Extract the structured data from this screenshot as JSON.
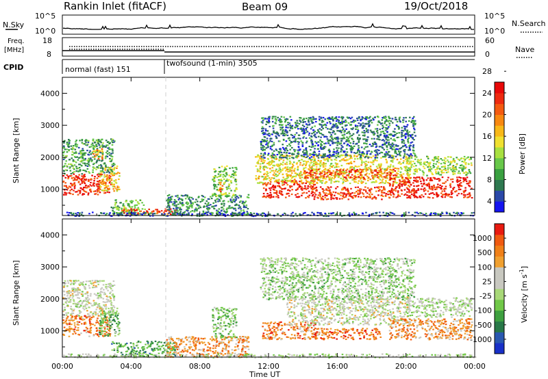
{
  "header": {
    "station": "Rankin Inlet (fitACF)",
    "beam": "Beam 09",
    "date": "19/Oct/2018"
  },
  "noise_panel": {
    "left_label": "N.Sky",
    "right_label": "N.Search",
    "left_ticks": [
      "10^5",
      "10^0"
    ],
    "right_ticks": [
      "10^5",
      "10^0"
    ]
  },
  "freq_panel": {
    "left_label_1": "Freq.",
    "left_label_2": "[MHz]",
    "left_ticks": [
      "18",
      "8"
    ],
    "right_ticks": [
      "60",
      "0"
    ],
    "right_label": "Nave"
  },
  "cpid": {
    "label": "CPID",
    "modes": [
      {
        "name": "normal (fast) 151",
        "start": "00:00",
        "end": "06:00"
      },
      {
        "name": "twofsound (1-min) 3505",
        "start": "06:00",
        "end": "24:00"
      }
    ]
  },
  "chart_data": [
    {
      "type": "heatmap",
      "title": "",
      "xlabel": "",
      "ylabel": "Slant Range [km]",
      "x_ticks": [
        "00:00",
        "04:00",
        "08:00",
        "12:00",
        "16:00",
        "20:00",
        "00:00"
      ],
      "xlim_hours": [
        0,
        24
      ],
      "y_ticks": [
        1000,
        2000,
        3000,
        4000
      ],
      "ylim": [
        180,
        4500
      ],
      "colorbar": {
        "label": "Power [dB]",
        "tick_labels": [
          "4",
          "8",
          "12",
          "16",
          "20",
          "24",
          "28"
        ],
        "colors": [
          "#1414f0",
          "#2a48a8",
          "#2e7850",
          "#3aa040",
          "#68c84a",
          "#a8e040",
          "#f0e030",
          "#f8b818",
          "#f88810",
          "#f45a10",
          "#ee2a10",
          "#e80808"
        ]
      },
      "regions": [
        {
          "t0": 0.0,
          "t1": 2.8,
          "r0": 850,
          "r1": 1500,
          "lvl": 0.9
        },
        {
          "t0": 2.1,
          "t1": 3.3,
          "r0": 950,
          "r1": 1750,
          "lvl": 0.6
        },
        {
          "t0": 0.0,
          "t1": 3.0,
          "r0": 1500,
          "r1": 2600,
          "lvl": 0.3
        },
        {
          "t0": 1.7,
          "t1": 2.3,
          "r0": 1950,
          "r1": 2300,
          "lvl": 0.65
        },
        {
          "t0": 2.8,
          "t1": 4.8,
          "r0": 220,
          "r1": 700,
          "lvl": 0.35
        },
        {
          "t0": 3.4,
          "t1": 6.6,
          "r0": 230,
          "r1": 420,
          "lvl": 0.85
        },
        {
          "t0": 6.0,
          "t1": 10.8,
          "r0": 200,
          "r1": 850,
          "lvl": 0.25
        },
        {
          "t0": 8.7,
          "t1": 10.1,
          "r0": 800,
          "r1": 1750,
          "lvl": 0.4
        },
        {
          "t0": 9.0,
          "t1": 9.3,
          "r0": 950,
          "r1": 1250,
          "lvl": 0.75
        },
        {
          "t0": 11.6,
          "t1": 14.8,
          "r0": 750,
          "r1": 1300,
          "lvl": 0.9
        },
        {
          "t0": 11.2,
          "t1": 20.2,
          "r0": 1200,
          "r1": 2100,
          "lvl": 0.55
        },
        {
          "t0": 14.0,
          "t1": 19.5,
          "r0": 1350,
          "r1": 1650,
          "lvl": 0.8
        },
        {
          "t0": 14.6,
          "t1": 19.0,
          "r0": 700,
          "r1": 1100,
          "lvl": 0.85
        },
        {
          "t0": 19.0,
          "t1": 23.8,
          "r0": 750,
          "r1": 1400,
          "lvl": 0.9
        },
        {
          "t0": 20.0,
          "t1": 23.8,
          "r0": 1450,
          "r1": 2050,
          "lvl": 0.45
        },
        {
          "t0": 11.5,
          "t1": 20.5,
          "r0": 2000,
          "r1": 3300,
          "lvl": 0.2
        },
        {
          "t0": 0.0,
          "t1": 24.0,
          "r0": 180,
          "r1": 300,
          "lvl": 0.15
        }
      ]
    },
    {
      "type": "heatmap",
      "title": "",
      "xlabel": "Time UT",
      "ylabel": "Slant Range [km]",
      "x_ticks": [
        "00:00",
        "04:00",
        "08:00",
        "12:00",
        "16:00",
        "20:00",
        "00:00"
      ],
      "xlim_hours": [
        0,
        24
      ],
      "y_ticks": [
        1000,
        2000,
        3000,
        4000
      ],
      "ylim": [
        180,
        4500
      ],
      "colorbar": {
        "label": "Velocity [m s^-1]",
        "tick_labels": [
          "1000",
          "500",
          "100",
          "25",
          "-25",
          "-100",
          "-500",
          "-1000"
        ],
        "colors": [
          "#1830c8",
          "#2a58b0",
          "#287848",
          "#3ea040",
          "#70c848",
          "#a8d878",
          "#c8c8c0",
          "#c8c8c0",
          "#f0a030",
          "#f08018",
          "#f05a10",
          "#e81a10"
        ]
      },
      "regions": [
        {
          "t0": 0.0,
          "t1": 2.8,
          "r0": 850,
          "r1": 1500,
          "lvl": 0.78
        },
        {
          "t0": 2.1,
          "t1": 3.3,
          "r0": 850,
          "r1": 1750,
          "lvl": 0.35
        },
        {
          "t0": 0.0,
          "t1": 3.0,
          "r0": 1500,
          "r1": 2600,
          "lvl": 0.55
        },
        {
          "t0": 2.8,
          "t1": 6.6,
          "r0": 220,
          "r1": 700,
          "lvl": 0.3
        },
        {
          "t0": 6.0,
          "t1": 10.8,
          "r0": 200,
          "r1": 850,
          "lvl": 0.75
        },
        {
          "t0": 8.7,
          "t1": 10.1,
          "r0": 800,
          "r1": 1750,
          "lvl": 0.4
        },
        {
          "t0": 11.6,
          "t1": 14.8,
          "r0": 750,
          "r1": 1300,
          "lvl": 0.78
        },
        {
          "t0": 13.0,
          "t1": 20.2,
          "r0": 1200,
          "r1": 2100,
          "lvl": 0.55
        },
        {
          "t0": 14.6,
          "t1": 18.5,
          "r0": 750,
          "r1": 1100,
          "lvl": 0.82
        },
        {
          "t0": 19.0,
          "t1": 23.8,
          "r0": 750,
          "r1": 1400,
          "lvl": 0.75
        },
        {
          "t0": 20.0,
          "t1": 23.8,
          "r0": 1450,
          "r1": 2050,
          "lvl": 0.5
        },
        {
          "t0": 11.5,
          "t1": 20.5,
          "r0": 2000,
          "r1": 3300,
          "lvl": 0.45
        },
        {
          "t0": 0.0,
          "t1": 24.0,
          "r0": 180,
          "r1": 300,
          "lvl": 0.5
        }
      ]
    }
  ]
}
